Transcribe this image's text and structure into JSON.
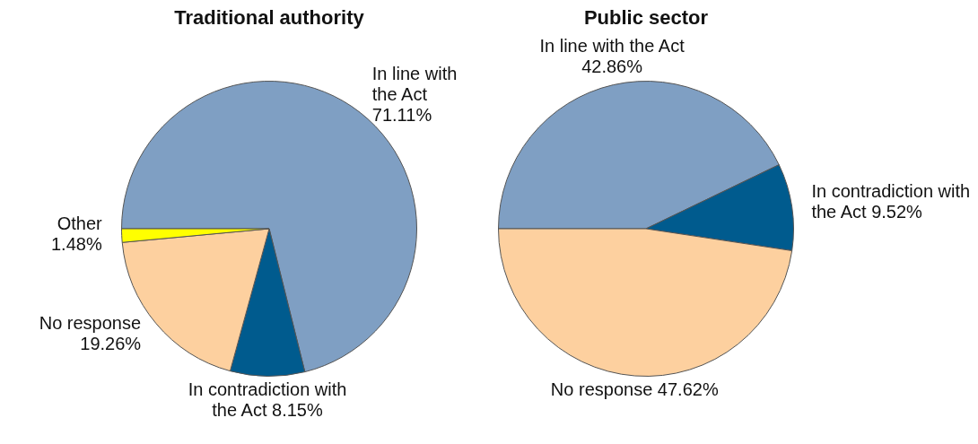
{
  "chart_data": [
    {
      "type": "pie",
      "title": "Traditional authority",
      "categories": [
        "In line with the Act",
        "In contradiction with the Act",
        "No response",
        "Other"
      ],
      "values": [
        71.11,
        8.15,
        19.26,
        1.48
      ],
      "value_labels": [
        "71.11%",
        "8.15%",
        "19.26%",
        "1.48%"
      ],
      "colors": [
        "#7f9fc3",
        "#005b8e",
        "#fdd09f",
        "#ffff00"
      ]
    },
    {
      "type": "pie",
      "title": "Public sector",
      "categories": [
        "In line with the Act",
        "In contradiction with the Act",
        "No response"
      ],
      "values": [
        42.86,
        9.52,
        47.62
      ],
      "value_labels": [
        "42.86%",
        "9.52%",
        "47.62%"
      ],
      "colors": [
        "#7f9fc3",
        "#005b8e",
        "#fdd09f"
      ]
    }
  ]
}
